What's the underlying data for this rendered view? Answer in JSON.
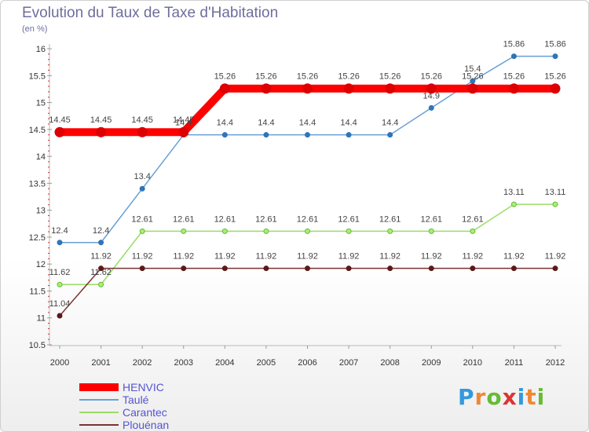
{
  "chart_data": {
    "type": "line",
    "title": "Evolution du Taux de Taxe d'Habitation",
    "subtitle": "(en %)",
    "x": [
      "2000",
      "2001",
      "2002",
      "2003",
      "2004",
      "2005",
      "2006",
      "2007",
      "2008",
      "2009",
      "2010",
      "2011",
      "2012"
    ],
    "ylim": [
      10.5,
      16
    ],
    "yticks": [
      "10.5",
      "11",
      "11.5",
      "12",
      "12.5",
      "13",
      "13.5",
      "14",
      "14.5",
      "15",
      "15.5",
      "16"
    ],
    "grid": false,
    "legend_position": "bottom-left",
    "series": [
      {
        "name": "HENVIC",
        "color": "#ff0000",
        "values": [
          14.45,
          14.45,
          14.45,
          14.45,
          15.26,
          15.26,
          15.26,
          15.26,
          15.26,
          15.26,
          15.26,
          15.26,
          15.26
        ],
        "labels": [
          "14.45",
          "14.45",
          "14.45",
          "14.45",
          "15.26",
          "15.26",
          "15.26",
          "15.26",
          "15.26",
          "15.26",
          "15.26",
          "15.26",
          "15.26"
        ]
      },
      {
        "name": "Taulé",
        "color": "#6a9fd4",
        "values": [
          12.4,
          12.4,
          13.4,
          14.4,
          14.4,
          14.4,
          14.4,
          14.4,
          14.4,
          14.9,
          15.4,
          15.86,
          15.86
        ],
        "labels": [
          "12.4",
          "12.4",
          "13.4",
          "14.4",
          "14.4",
          "14.4",
          "14.4",
          "14.4",
          "14.4",
          "14.9",
          "15.4",
          "15.86",
          "15.86"
        ]
      },
      {
        "name": "Carantec",
        "color": "#99dd66",
        "values": [
          11.62,
          11.62,
          12.61,
          12.61,
          12.61,
          12.61,
          12.61,
          12.61,
          12.61,
          12.61,
          12.61,
          13.11,
          13.11
        ],
        "labels": [
          "11.62",
          "11.62",
          "12.61",
          "12.61",
          "12.61",
          "12.61",
          "12.61",
          "12.61",
          "12.61",
          "12.61",
          "12.61",
          "13.11",
          "13.11"
        ]
      },
      {
        "name": "Plouénan",
        "color": "#7a3333",
        "values": [
          11.04,
          11.92,
          11.92,
          11.92,
          11.92,
          11.92,
          11.92,
          11.92,
          11.92,
          11.92,
          11.92,
          11.92,
          11.92
        ],
        "labels": [
          "11.04",
          "11.92",
          "11.92",
          "11.92",
          "11.92",
          "11.92",
          "11.92",
          "11.92",
          "11.92",
          "11.92",
          "11.92",
          "11.92",
          "11.92"
        ]
      }
    ]
  },
  "logo": {
    "letters": [
      "P",
      "r",
      "o",
      "x",
      "i",
      "t",
      "i"
    ],
    "colors": [
      "#3399dd",
      "#ee8833",
      "#66bb33",
      "#dd3333",
      "#3399dd",
      "#ee8833",
      "#66bb33"
    ]
  }
}
